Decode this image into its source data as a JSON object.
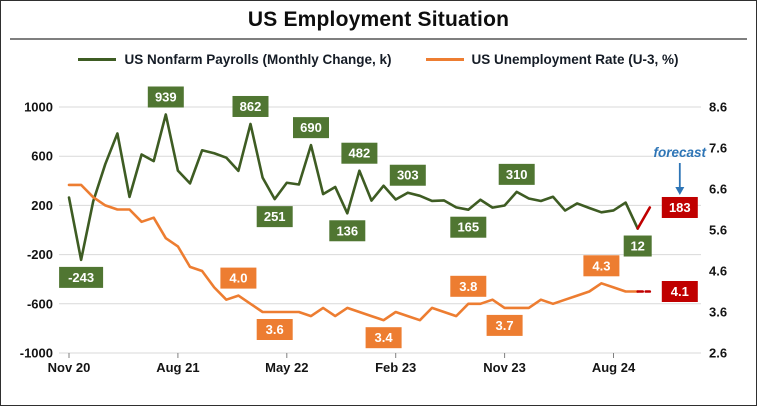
{
  "title": "US Employment Situation",
  "legend": [
    {
      "label": "US Nonfarm Payrolls (Monthly Change, k)",
      "color": "#3e5c23"
    },
    {
      "label": "US Unemployment Rate (U-3, %)",
      "color": "#ED7D31"
    }
  ],
  "forecast_note": {
    "text": "forecast",
    "color": "#2E75B6"
  },
  "colors": {
    "payrolls_line": "#3e5c23",
    "payrolls_label_bg": "#507632",
    "unemployment_line": "#ED7D31",
    "unemployment_label_bg": "#ED7D31",
    "forecast": "#C00000",
    "gridline": "#d9d9d9"
  },
  "chart_data": {
    "type": "line",
    "title": "US Employment Situation",
    "x_months": [
      "Nov 20",
      "Dec 20",
      "Jan 21",
      "Feb 21",
      "Mar 21",
      "Apr 21",
      "May 21",
      "Jun 21",
      "Jul 21",
      "Aug 21",
      "Sep 21",
      "Oct 21",
      "Nov 21",
      "Dec 21",
      "Jan 22",
      "Feb 22",
      "Mar 22",
      "Apr 22",
      "May 22",
      "Jun 22",
      "Jul 22",
      "Aug 22",
      "Sep 22",
      "Oct 22",
      "Nov 22",
      "Dec 22",
      "Jan 23",
      "Feb 23",
      "Mar 23",
      "Apr 23",
      "May 23",
      "Jun 23",
      "Jul 23",
      "Aug 23",
      "Sep 23",
      "Oct 23",
      "Nov 23",
      "Dec 23",
      "Jan 24",
      "Feb 24",
      "Mar 24",
      "Apr 24",
      "May 24",
      "Jun 24",
      "Jul 24",
      "Aug 24",
      "Sep 24",
      "Oct 24",
      "Nov 24"
    ],
    "x_ticks": [
      {
        "label": "Nov 20",
        "index": 0
      },
      {
        "label": "Aug 21",
        "index": 9
      },
      {
        "label": "May 22",
        "index": 18
      },
      {
        "label": "Feb 23",
        "index": 27
      },
      {
        "label": "Nov 23",
        "index": 36
      },
      {
        "label": "Aug 24",
        "index": 45
      }
    ],
    "left_axis": {
      "ticks": [
        1000,
        600,
        200,
        -200,
        -600,
        -1000
      ],
      "range": [
        -1000,
        1000
      ]
    },
    "right_axis": {
      "ticks": [
        8.6,
        7.6,
        6.6,
        5.6,
        4.6,
        3.6,
        2.6
      ],
      "range": [
        2.6,
        8.6
      ]
    },
    "forecast_start_index": 47,
    "series": [
      {
        "name": "US Nonfarm Payrolls (Monthly Change, k)",
        "axis": "left",
        "color": "#3e5c23",
        "forecast_color": "#C00000",
        "forecast_dash": false,
        "values": [
          264,
          -243,
          233,
          536,
          785,
          269,
          614,
          560,
          939,
          483,
          379,
          648,
          624,
          588,
          481,
          862,
          426,
          251,
          384,
          370,
          690,
          292,
          350,
          136,
          482,
          239,
          360,
          248,
          303,
          278,
          236,
          240,
          184,
          165,
          246,
          182,
          199,
          310,
          256,
          236,
          270,
          158,
          216,
          179,
          144,
          159,
          223,
          12,
          183
        ]
      },
      {
        "name": "US Unemployment Rate (U-3, %)",
        "axis": "right",
        "color": "#ED7D31",
        "forecast_color": "#C00000",
        "forecast_dash": true,
        "values": [
          6.7,
          6.7,
          6.4,
          6.2,
          6.1,
          6.1,
          5.8,
          5.9,
          5.4,
          5.2,
          4.7,
          4.6,
          4.2,
          3.9,
          4.0,
          3.8,
          3.6,
          3.6,
          3.6,
          3.6,
          3.5,
          3.7,
          3.5,
          3.7,
          3.6,
          3.5,
          3.4,
          3.6,
          3.5,
          3.4,
          3.7,
          3.6,
          3.5,
          3.8,
          3.8,
          3.9,
          3.7,
          3.7,
          3.7,
          3.9,
          3.8,
          3.9,
          4.0,
          4.1,
          4.3,
          4.2,
          4.1,
          4.1,
          4.1
        ]
      }
    ],
    "annotations": [
      {
        "series": 0,
        "index": 1,
        "text": "-243",
        "placement": "below",
        "bg": "#507632"
      },
      {
        "series": 0,
        "index": 8,
        "text": "939",
        "placement": "above",
        "bg": "#507632"
      },
      {
        "series": 0,
        "index": 15,
        "text": "862",
        "placement": "above",
        "bg": "#507632"
      },
      {
        "series": 0,
        "index": 17,
        "text": "251",
        "placement": "below",
        "bg": "#507632"
      },
      {
        "series": 0,
        "index": 20,
        "text": "690",
        "placement": "above",
        "bg": "#507632"
      },
      {
        "series": 0,
        "index": 23,
        "text": "136",
        "placement": "below",
        "bg": "#507632"
      },
      {
        "series": 0,
        "index": 24,
        "text": "482",
        "placement": "above",
        "bg": "#507632"
      },
      {
        "series": 0,
        "index": 28,
        "text": "303",
        "placement": "above",
        "bg": "#507632"
      },
      {
        "series": 0,
        "index": 33,
        "text": "165",
        "placement": "below",
        "bg": "#507632"
      },
      {
        "series": 0,
        "index": 37,
        "text": "310",
        "placement": "above",
        "bg": "#507632"
      },
      {
        "series": 0,
        "index": 47,
        "text": "12",
        "placement": "below",
        "bg": "#507632"
      },
      {
        "series": 0,
        "index": 48,
        "text": "183",
        "placement": "right",
        "bg": "#C00000",
        "forecast_target": true
      },
      {
        "series": 1,
        "index": 14,
        "text": "4.0",
        "placement": "above",
        "bg": "#ED7D31"
      },
      {
        "series": 1,
        "index": 17,
        "text": "3.6",
        "placement": "below",
        "bg": "#ED7D31"
      },
      {
        "series": 1,
        "index": 26,
        "text": "3.4",
        "placement": "below",
        "bg": "#ED7D31"
      },
      {
        "series": 1,
        "index": 33,
        "text": "3.8",
        "placement": "above",
        "bg": "#ED7D31"
      },
      {
        "series": 1,
        "index": 36,
        "text": "3.7",
        "placement": "below",
        "bg": "#ED7D31"
      },
      {
        "series": 1,
        "index": 44,
        "text": "4.3",
        "placement": "above",
        "bg": "#ED7D31"
      },
      {
        "series": 1,
        "index": 48,
        "text": "4.1",
        "placement": "right",
        "bg": "#C00000"
      }
    ]
  }
}
